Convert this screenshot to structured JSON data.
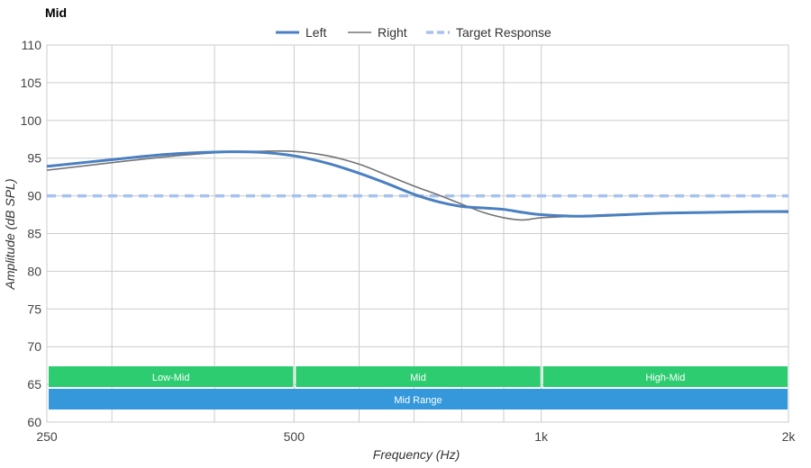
{
  "chart_data": {
    "type": "line",
    "title": "Mid",
    "xlabel": "Frequency (Hz)",
    "ylabel": "Amplitude (dB SPL)",
    "xscale": "log",
    "xlim": [
      250,
      2000
    ],
    "ylim": [
      60,
      110
    ],
    "grid": true,
    "legend_position": "top-center",
    "x_ticks": [
      {
        "value": 250,
        "label": "250"
      },
      {
        "value": 500,
        "label": "500"
      },
      {
        "value": 1000,
        "label": "1k"
      },
      {
        "value": 2000,
        "label": "2k"
      }
    ],
    "x_minor_gridlines": [
      300,
      400,
      600,
      700,
      800,
      900
    ],
    "y_ticks": [
      60,
      65,
      70,
      75,
      80,
      85,
      90,
      95,
      100,
      105,
      110
    ],
    "series": [
      {
        "name": "Left",
        "color": "#4a7fc1",
        "style": "solid-thick",
        "x": [
          250,
          300,
          350,
          400,
          450,
          500,
          550,
          600,
          650,
          700,
          750,
          800,
          850,
          900,
          950,
          1000,
          1100,
          1200,
          1400,
          1600,
          1800,
          2000
        ],
        "y": [
          93.9,
          94.8,
          95.5,
          95.8,
          95.8,
          95.3,
          94.3,
          93.0,
          91.6,
          90.2,
          89.2,
          88.6,
          88.4,
          88.2,
          87.8,
          87.5,
          87.3,
          87.4,
          87.7,
          87.8,
          87.9,
          87.9
        ]
      },
      {
        "name": "Right",
        "color": "#737373",
        "style": "solid-thin",
        "x": [
          250,
          300,
          350,
          400,
          450,
          500,
          550,
          600,
          650,
          700,
          750,
          800,
          850,
          900,
          950,
          1000,
          1100,
          1200,
          1400,
          1600,
          1800,
          2000
        ],
        "y": [
          93.4,
          94.4,
          95.2,
          95.7,
          95.9,
          95.9,
          95.3,
          94.2,
          92.7,
          91.3,
          90.1,
          88.9,
          87.8,
          87.1,
          86.8,
          87.1,
          87.3,
          87.5,
          87.7,
          87.8,
          87.9,
          88.0
        ]
      },
      {
        "name": "Target Response",
        "color": "#a8c2f0",
        "style": "dashed",
        "x": [
          250,
          2000
        ],
        "y": [
          90,
          90
        ]
      }
    ],
    "bands": [
      {
        "label": "Low-Mid",
        "from": 250,
        "to": 500,
        "row": 0,
        "color": "#2ecc71"
      },
      {
        "label": "Mid",
        "from": 500,
        "to": 1000,
        "row": 0,
        "color": "#2ecc71"
      },
      {
        "label": "High-Mid",
        "from": 1000,
        "to": 2000,
        "row": 0,
        "color": "#2ecc71"
      },
      {
        "label": "Mid Range",
        "from": 250,
        "to": 2000,
        "row": 1,
        "color": "#3498db"
      }
    ]
  }
}
